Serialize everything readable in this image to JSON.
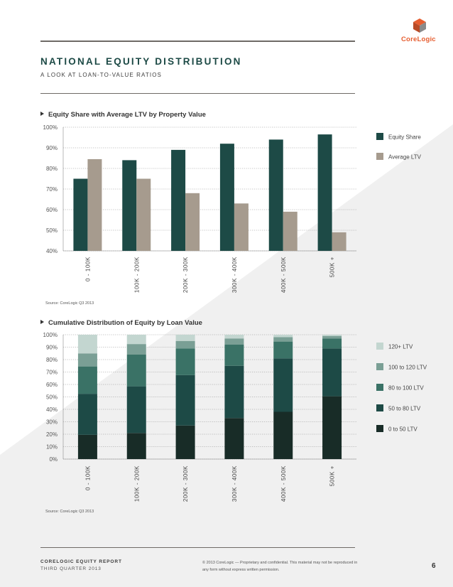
{
  "header": {
    "title": "NATIONAL EQUITY DISTRIBUTION",
    "subtitle": "A LOOK AT LOAN-TO-VALUE RATIOS",
    "logo_text": "CoreLogic",
    "brand_color": "#e65d2f"
  },
  "chart_data": [
    {
      "type": "bar",
      "title": "Equity Share with Average LTV by Property Value",
      "categories": [
        "0 - 100K",
        "100K - 200K",
        "200K - 300K",
        "300K - 400K",
        "400K - 500K",
        "500K +"
      ],
      "series": [
        {
          "name": "Equity Share",
          "values": [
            75,
            84,
            89,
            92,
            94,
            96.5
          ],
          "color": "#1d4a46"
        },
        {
          "name": "Average LTV",
          "values": [
            84.5,
            75,
            68,
            63,
            59,
            49
          ],
          "color": "#a69b8e"
        }
      ],
      "ylim": [
        40,
        100
      ],
      "yticks": [
        "40%",
        "50%",
        "60%",
        "70%",
        "80%",
        "90%",
        "100%"
      ],
      "grid": true,
      "legend": "right",
      "source": "Source: CoreLogic Q3 2013"
    },
    {
      "type": "bar",
      "stacked": true,
      "title": "Cumulative Distribution of Equity by Loan Value",
      "categories": [
        "0 - 100K",
        "100K - 200K",
        "200K - 300K",
        "300K - 400K",
        "400K - 500K",
        "500K +"
      ],
      "series": [
        {
          "name": "0 to 50 LTV",
          "values": [
            19.5,
            21,
            27,
            33,
            38,
            50.5
          ],
          "color": "#182c27"
        },
        {
          "name": "50 to 80 LTV",
          "values": [
            33,
            37.5,
            40.5,
            42,
            43,
            38.5
          ],
          "color": "#1d4a46"
        },
        {
          "name": "80 to 100 LTV",
          "values": [
            22,
            25.5,
            21.5,
            17,
            13.5,
            8
          ],
          "color": "#3a7266"
        },
        {
          "name": "100 to 120 LTV",
          "values": [
            10.5,
            8.5,
            6,
            5,
            3.5,
            2
          ],
          "color": "#7a9f95"
        },
        {
          "name": "120+ LTV",
          "values": [
            15,
            7.5,
            5,
            3,
            2,
            1
          ],
          "color": "#c3d6d0"
        }
      ],
      "ylim": [
        0,
        100
      ],
      "yticks": [
        "0%",
        "10%",
        "20%",
        "30%",
        "40%",
        "50%",
        "60%",
        "70%",
        "80%",
        "90%",
        "100%"
      ],
      "grid": true,
      "legend": "right",
      "source": "Source: CoreLogic Q3 2013"
    }
  ],
  "footer": {
    "report_title": "CORELOGIC EQUITY REPORT",
    "report_period": "THIRD QUARTER 2013",
    "legal": "© 2013 CoreLogic — Proprietary and confidential. This material may not be reproduced in any form without express written permission.",
    "page_number": "6"
  }
}
